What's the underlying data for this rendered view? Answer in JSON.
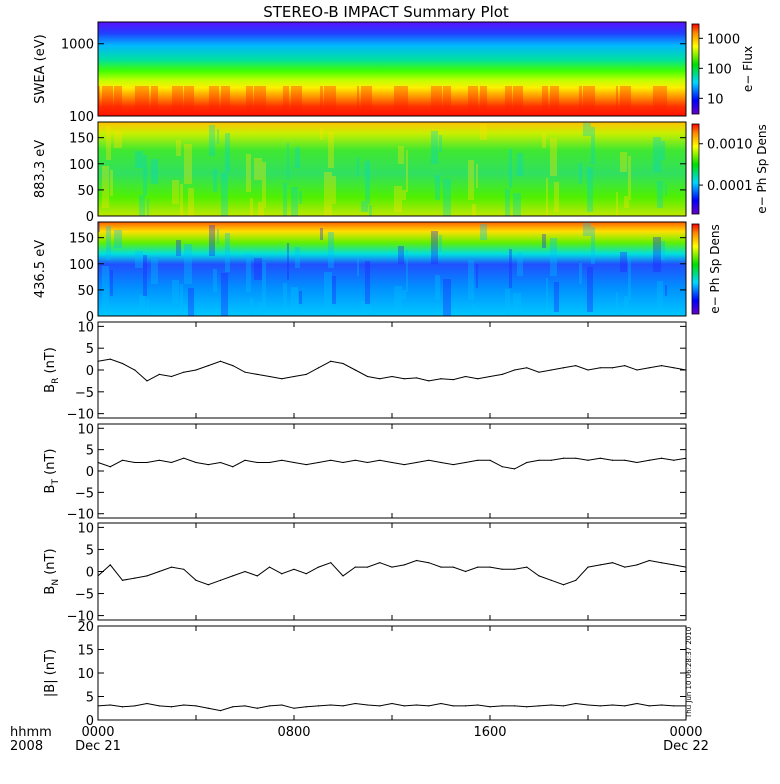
{
  "title": "STEREO-B IMPACT Summary Plot",
  "timestamp": "Thu Jun 10 06:28:37 2010",
  "x_axis": {
    "format_label": "hhmm",
    "year_label": "2008",
    "ticks": [
      {
        "value": 0,
        "label": "0000",
        "sublabel": "Dec 21"
      },
      {
        "value": 480,
        "label": "0800",
        "sublabel": ""
      },
      {
        "value": 960,
        "label": "1600",
        "sublabel": ""
      },
      {
        "value": 1440,
        "label": "0000",
        "sublabel": "Dec 22"
      }
    ],
    "range_minutes": [
      0,
      1440
    ]
  },
  "spectrograms": [
    {
      "id": "swea",
      "ylabel": "SWEA (eV)",
      "scale": "log",
      "ylim": [
        100,
        2000
      ],
      "yticks": [
        {
          "value": 100,
          "label": "100"
        },
        {
          "value": 1000,
          "label": "1000"
        }
      ],
      "colorbar": {
        "label": "e− Flux",
        "scale": "log",
        "range": [
          3,
          3000
        ],
        "ticks": [
          {
            "value": 10,
            "label": "10"
          },
          {
            "value": 100,
            "label": "100"
          },
          {
            "value": 1000,
            "label": "1000"
          }
        ]
      }
    },
    {
      "id": "pad883",
      "ylabel": "883.3 eV",
      "scale": "linear",
      "ylim": [
        0,
        180
      ],
      "yticks": [
        {
          "value": 0,
          "label": "0"
        },
        {
          "value": 50,
          "label": "50"
        },
        {
          "value": 100,
          "label": "100"
        },
        {
          "value": 150,
          "label": "150"
        }
      ],
      "colorbar": {
        "label": "e− Ph Sp Dens",
        "scale": "log",
        "range": [
          2e-05,
          0.003
        ],
        "ticks": [
          {
            "value": 0.0001,
            "label": "0.0001"
          },
          {
            "value": 0.001,
            "label": "0.0010"
          }
        ]
      }
    },
    {
      "id": "pad436",
      "ylabel": "436.5 eV",
      "scale": "linear",
      "ylim": [
        0,
        180
      ],
      "yticks": [
        {
          "value": 0,
          "label": "0"
        },
        {
          "value": 50,
          "label": "50"
        },
        {
          "value": 100,
          "label": "100"
        },
        {
          "value": 150,
          "label": "150"
        }
      ],
      "colorbar": {
        "label": "e− Ph Sp Dens",
        "scale": "log",
        "range": [
          0.0001,
          0.01
        ],
        "ticks": []
      }
    }
  ],
  "chart_data": [
    {
      "type": "line",
      "id": "br",
      "ylabel_main": "B",
      "ylabel_sub": "R",
      "ylabel_unit": " (nT)",
      "ylim": [
        -11,
        11
      ],
      "yticks": [
        {
          "value": -10,
          "label": "−10"
        },
        {
          "value": -5,
          "label": "−5"
        },
        {
          "value": 0,
          "label": "0"
        },
        {
          "value": 5,
          "label": "5"
        },
        {
          "value": 10,
          "label": "10"
        }
      ],
      "x": [
        0,
        30,
        60,
        90,
        120,
        150,
        180,
        210,
        240,
        270,
        300,
        330,
        360,
        390,
        420,
        450,
        480,
        510,
        540,
        570,
        600,
        630,
        660,
        690,
        720,
        750,
        780,
        810,
        840,
        870,
        900,
        930,
        960,
        990,
        1020,
        1050,
        1080,
        1110,
        1140,
        1170,
        1200,
        1230,
        1260,
        1290,
        1320,
        1350,
        1380,
        1410,
        1440
      ],
      "values": [
        2,
        2.5,
        1.5,
        0,
        -2.5,
        -1,
        -1.5,
        -0.5,
        0,
        1,
        2,
        1,
        -0.5,
        -1,
        -1.5,
        -2,
        -1.5,
        -1,
        0.5,
        2,
        1.5,
        0,
        -1.5,
        -2,
        -1.5,
        -2,
        -1.8,
        -2.5,
        -2,
        -2.2,
        -1.5,
        -2,
        -1.5,
        -1,
        0,
        0.5,
        -0.5,
        0,
        0.5,
        1,
        0,
        0.5,
        0.5,
        1,
        0,
        0.5,
        1,
        0.5,
        0
      ]
    },
    {
      "type": "line",
      "id": "bt",
      "ylabel_main": "B",
      "ylabel_sub": "T",
      "ylabel_unit": " (nT)",
      "ylim": [
        -11,
        11
      ],
      "yticks": [
        {
          "value": -10,
          "label": "−10"
        },
        {
          "value": -5,
          "label": "−5"
        },
        {
          "value": 0,
          "label": "0"
        },
        {
          "value": 5,
          "label": "5"
        },
        {
          "value": 10,
          "label": "10"
        }
      ],
      "x": [
        0,
        30,
        60,
        90,
        120,
        150,
        180,
        210,
        240,
        270,
        300,
        330,
        360,
        390,
        420,
        450,
        480,
        510,
        540,
        570,
        600,
        630,
        660,
        690,
        720,
        750,
        780,
        810,
        840,
        870,
        900,
        930,
        960,
        990,
        1020,
        1050,
        1080,
        1110,
        1140,
        1170,
        1200,
        1230,
        1260,
        1290,
        1320,
        1350,
        1380,
        1410,
        1440
      ],
      "values": [
        2,
        1,
        2.5,
        2,
        2,
        2.5,
        2,
        3,
        2,
        1.5,
        2,
        1,
        2.5,
        2,
        2,
        2.5,
        2,
        1.5,
        2,
        2.5,
        2,
        2.5,
        2,
        2.5,
        2,
        1.5,
        2,
        2.5,
        2,
        1.5,
        2,
        2.5,
        2.5,
        1,
        0.5,
        2,
        2.5,
        2.5,
        3,
        3,
        2.5,
        3,
        2.5,
        2.5,
        2,
        2.5,
        3,
        2.5,
        3
      ]
    },
    {
      "type": "line",
      "id": "bn",
      "ylabel_main": "B",
      "ylabel_sub": "N",
      "ylabel_unit": " (nT)",
      "ylim": [
        -11,
        11
      ],
      "yticks": [
        {
          "value": -10,
          "label": "−10"
        },
        {
          "value": -5,
          "label": "−5"
        },
        {
          "value": 0,
          "label": "0"
        },
        {
          "value": 5,
          "label": "5"
        },
        {
          "value": 10,
          "label": "10"
        }
      ],
      "x": [
        0,
        30,
        60,
        90,
        120,
        150,
        180,
        210,
        240,
        270,
        300,
        330,
        360,
        390,
        420,
        450,
        480,
        510,
        540,
        570,
        600,
        630,
        660,
        690,
        720,
        750,
        780,
        810,
        840,
        870,
        900,
        930,
        960,
        990,
        1020,
        1050,
        1080,
        1110,
        1140,
        1170,
        1200,
        1230,
        1260,
        1290,
        1320,
        1350,
        1380,
        1410,
        1440
      ],
      "values": [
        -1,
        1.5,
        -2,
        -1.5,
        -1,
        0,
        1,
        0.5,
        -2,
        -3,
        -2,
        -1,
        0,
        -1,
        1,
        -0.5,
        0.5,
        -0.5,
        1,
        2,
        -1,
        1,
        1,
        2,
        1,
        1.5,
        2.5,
        2,
        1,
        1,
        0,
        1,
        1,
        0.5,
        0.5,
        1,
        -1,
        -2,
        -3,
        -2,
        1,
        1.5,
        2,
        1,
        1.5,
        2.5,
        2,
        1.5,
        1
      ]
    },
    {
      "type": "line",
      "id": "bmag",
      "ylabel_main": "|B|",
      "ylabel_sub": "",
      "ylabel_unit": " (nT)",
      "ylim": [
        0,
        20
      ],
      "yticks": [
        {
          "value": 0,
          "label": "0"
        },
        {
          "value": 5,
          "label": "5"
        },
        {
          "value": 10,
          "label": "10"
        },
        {
          "value": 15,
          "label": "15"
        },
        {
          "value": 20,
          "label": "20"
        }
      ],
      "x": [
        0,
        30,
        60,
        90,
        120,
        150,
        180,
        210,
        240,
        270,
        300,
        330,
        360,
        390,
        420,
        450,
        480,
        510,
        540,
        570,
        600,
        630,
        660,
        690,
        720,
        750,
        780,
        810,
        840,
        870,
        900,
        930,
        960,
        990,
        1020,
        1050,
        1080,
        1110,
        1140,
        1170,
        1200,
        1230,
        1260,
        1290,
        1320,
        1350,
        1380,
        1410,
        1440
      ],
      "values": [
        3,
        3.2,
        2.8,
        3,
        3.5,
        3,
        2.8,
        3.2,
        3,
        2.5,
        2,
        2.8,
        3,
        2.5,
        3,
        3.2,
        2.5,
        2.8,
        3,
        3.2,
        3,
        3.5,
        3.2,
        3,
        3.5,
        3,
        3.2,
        3,
        3.5,
        3,
        3,
        3.2,
        2.8,
        3,
        3,
        2.8,
        3,
        3.2,
        3,
        3.5,
        3.2,
        3,
        3.2,
        3,
        3.5,
        3,
        3.2,
        3,
        3
      ]
    }
  ]
}
